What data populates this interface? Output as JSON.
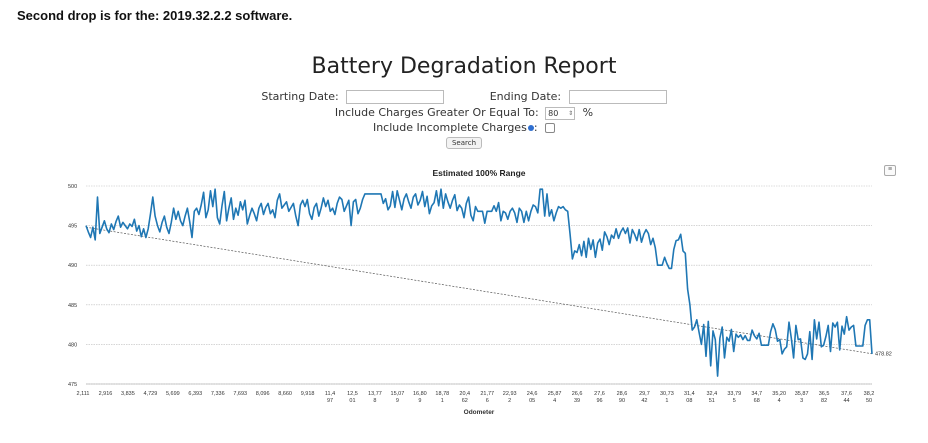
{
  "caption": "Second drop is for the: 2019.32.2.2 software.",
  "report": {
    "title": "Battery Degradation Report",
    "starting_date_label": "Starting Date:",
    "ending_date_label": "Ending Date:",
    "charges_label": "Include Charges Greater Or Equal To:",
    "charges_value": "80",
    "percent_sign": "%",
    "incomplete_label": "Include Incomplete Charges",
    "incomplete_suffix": ":",
    "search_label": "Search"
  },
  "icons": {
    "chart_menu": "hamburger-menu-icon",
    "info": "info-dot-icon"
  },
  "colors": {
    "series": "#1f77b4",
    "trend": "#555555",
    "grid": "#bdbdbd"
  },
  "chart_data": {
    "type": "line",
    "title": "Estimated 100% Range",
    "xlabel": "Odometer",
    "ylabel": "",
    "ylim": [
      475,
      500
    ],
    "yticks": [
      475,
      480,
      485,
      490,
      495,
      500
    ],
    "grid": true,
    "x_tick_labels": [
      [
        "2,111"
      ],
      [
        "2,916"
      ],
      [
        "3,835"
      ],
      [
        "4,729"
      ],
      [
        "5,699"
      ],
      [
        "6,393"
      ],
      [
        "7,336"
      ],
      [
        "7,693"
      ],
      [
        "8,096"
      ],
      [
        "8,660"
      ],
      [
        "9,918"
      ],
      [
        "11,4",
        "97"
      ],
      [
        "12,5",
        "01"
      ],
      [
        "13,77",
        "8"
      ],
      [
        "15,07",
        "9"
      ],
      [
        "16,80",
        "9"
      ],
      [
        "18,78",
        "1"
      ],
      [
        "20,4",
        "62"
      ],
      [
        "21,77",
        "6"
      ],
      [
        "22,93",
        "2"
      ],
      [
        "24,6",
        "05"
      ],
      [
        "25,87",
        "4"
      ],
      [
        "26,6",
        "39"
      ],
      [
        "27,6",
        "96"
      ],
      [
        "28,6",
        "90"
      ],
      [
        "29,7",
        "42"
      ],
      [
        "30,73",
        "1"
      ],
      [
        "31,4",
        "08"
      ],
      [
        "32,4",
        "51"
      ],
      [
        "33,79",
        "5"
      ],
      [
        "34,7",
        "68"
      ],
      [
        "35,20",
        "4"
      ],
      [
        "35,87",
        "3"
      ],
      [
        "36,5",
        "82"
      ],
      [
        "37,6",
        "44"
      ],
      [
        "38,2",
        "50"
      ]
    ],
    "series": [
      {
        "values": [
          495.0,
          494.2,
          493.5,
          494.8,
          493.2,
          498.6,
          494.0,
          494.8,
          495.6,
          494.6,
          494.1,
          495.2,
          494.5,
          495.5,
          496.2,
          494.8,
          495.4,
          495.0,
          494.6,
          495.2,
          494.9,
          495.8,
          494.3,
          495.0,
          493.6,
          494.6,
          493.5,
          494.6,
          496.5,
          498.6,
          496.2,
          495.0,
          494.2,
          495.4,
          496.2,
          494.8,
          494.0,
          495.4,
          497.2,
          495.8,
          496.8,
          495.6,
          495.0,
          496.2,
          497.2,
          495.5,
          493.5,
          496.8,
          497.2,
          496.4,
          497.6,
          499.2,
          496.0,
          497.0,
          499.4,
          497.4,
          499.6,
          496.0,
          495.2,
          497.5,
          499.3,
          495.6,
          497.2,
          498.5,
          495.8,
          497.2,
          496.3,
          498.0,
          497.0,
          498.2,
          495.2,
          496.3,
          497.2,
          496.5,
          495.6,
          497.2,
          497.8,
          496.4,
          497.3,
          497.8,
          496.5,
          497.0,
          496.0,
          498.2,
          499.0,
          497.2,
          497.6,
          498.0,
          496.8,
          497.3,
          497.8,
          496.2,
          495.0,
          497.6,
          498.2,
          497.4,
          498.3,
          496.5,
          495.8,
          497.3,
          497.8,
          496.2,
          497.2,
          498.5,
          497.4,
          498.2,
          496.8,
          497.2,
          496.4,
          497.8,
          498.6,
          498.3,
          496.8,
          497.5,
          498.2,
          495.0,
          498.0,
          498.3,
          496.5,
          497.2,
          498.3,
          499.0,
          499.0,
          499.0,
          499.0,
          499.0,
          499.0,
          499.0,
          499.0,
          497.8,
          498.4,
          497.0,
          497.5,
          499.3,
          497.3,
          499.4,
          498.2,
          497.0,
          498.4,
          499.0,
          498.0,
          497.2,
          498.6,
          499.0,
          497.6,
          498.2,
          499.3,
          497.4,
          498.7,
          496.5,
          497.5,
          497.9,
          499.4,
          497.5,
          499.6,
          497.2,
          499.0,
          498.0,
          497.2,
          498.2,
          498.9,
          496.9,
          497.6,
          497.2,
          496.0,
          497.8,
          498.6,
          496.3,
          495.6,
          497.4,
          496.8,
          496.8,
          496.8,
          495.3,
          496.8,
          496.8,
          496.8,
          497.5,
          496.8,
          497.9,
          495.6,
          496.8,
          496.6,
          495.8,
          496.8,
          497.2,
          496.6,
          495.4,
          497.2,
          496.8,
          495.4,
          496.8,
          495.6,
          496.8,
          497.6,
          497.4,
          496.6,
          499.6,
          499.6,
          496.2,
          499.0,
          496.2,
          497.0,
          495.6,
          496.6,
          497.4,
          497.2,
          497.4,
          497.0,
          496.8,
          494.0,
          490.8,
          491.8,
          491.6,
          492.6,
          491.2,
          493.0,
          491.0,
          493.4,
          492.0,
          493.2,
          491.0,
          492.8,
          493.3,
          491.9,
          494.2,
          493.6,
          492.6,
          493.8,
          493.4,
          494.6,
          493.4,
          494.2,
          494.7,
          494.0,
          494.7,
          492.8,
          494.5,
          493.9,
          493.1,
          494.5,
          492.9,
          493.9,
          494.5,
          494.0,
          492.6,
          493.4,
          492.2,
          490.0,
          490.0,
          490.0,
          491.0,
          490.2,
          489.6,
          489.6,
          492.0,
          493.1,
          493.2,
          493.9,
          491.8,
          491.5,
          487.0,
          485.0,
          481.8,
          482.2,
          483.1,
          481.5,
          480.0,
          482.5,
          478.5,
          482.9,
          477.3,
          481.7,
          480.6,
          476.0,
          480.8,
          482.2,
          478.3,
          480.9,
          480.4,
          481.9,
          479.1,
          481.3,
          480.9,
          481.2,
          480.6,
          481.1,
          480.5,
          480.5,
          481.8,
          481.1,
          480.7,
          481.4,
          479.9,
          479.9,
          479.9,
          479.9,
          481.6,
          482.6,
          481.9,
          480.4,
          480.6,
          478.8,
          479.4,
          479.7,
          482.8,
          480.8,
          478.3,
          482.4,
          480.6,
          480.7,
          478.3,
          478.1,
          478.8,
          481.6,
          478.1,
          483.1,
          480.7,
          482.8,
          479.7,
          479.9,
          481.0,
          482.4,
          479.1,
          482.7,
          482.2,
          482.8,
          479.3,
          482.3,
          481.3,
          483.5,
          481.8,
          482.2,
          482.4,
          479.8,
          479.8,
          479.8,
          479.8,
          482.4,
          483.1,
          483.1,
          478.8
        ]
      }
    ],
    "trendline": {
      "start": 494.8,
      "end": 478.82
    },
    "end_label": "478.82"
  }
}
